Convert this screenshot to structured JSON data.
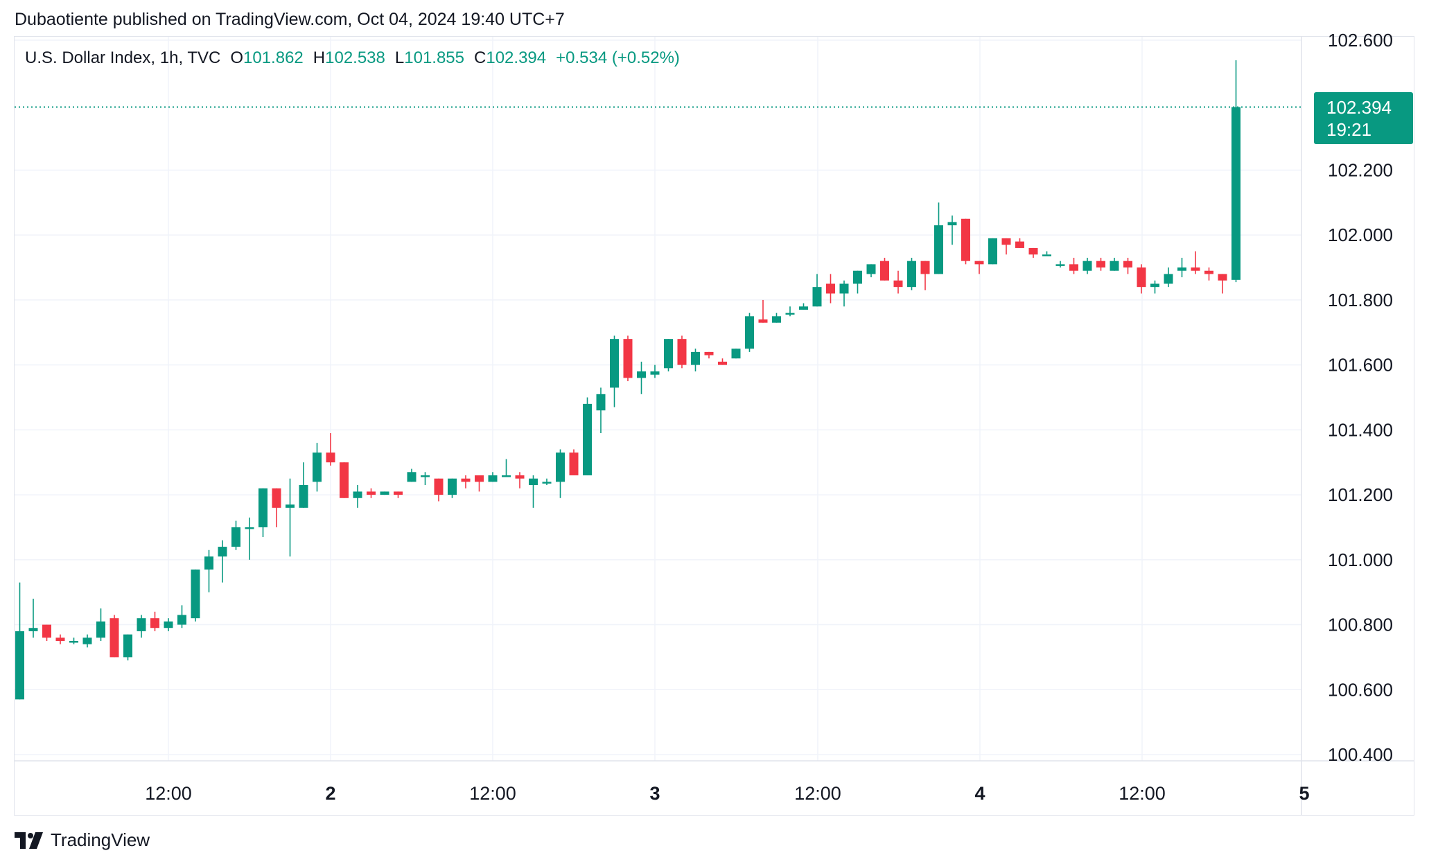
{
  "header": {
    "published_line": "Dubaotiente published on TradingView.com, Oct 04, 2024 19:40 UTC+7"
  },
  "legend": {
    "symbol": "U.S. Dollar Index, 1h, TVC",
    "open_label": "O",
    "open": "101.862",
    "high_label": "H",
    "high": "102.538",
    "low_label": "L",
    "low": "101.855",
    "close_label": "C",
    "close": "102.394",
    "change": "+0.534 (+0.52%)"
  },
  "price_tag": {
    "price": "102.394",
    "countdown": "19:21"
  },
  "footer": {
    "brand": "TradingView"
  },
  "colors": {
    "up": "#089981",
    "down": "#f23645",
    "grid": "#f0f3fa",
    "text": "#131722"
  },
  "chart_data": {
    "type": "candlestick",
    "y_axis_ticks": [
      "102.600",
      "102.200",
      "102.000",
      "101.800",
      "101.600",
      "101.400",
      "101.200",
      "101.000",
      "100.800",
      "100.600",
      "100.400"
    ],
    "x_axis_ticks": [
      {
        "label": "12:00",
        "bold": false
      },
      {
        "label": "2",
        "bold": true
      },
      {
        "label": "12:00",
        "bold": false
      },
      {
        "label": "3",
        "bold": true
      },
      {
        "label": "12:00",
        "bold": false
      },
      {
        "label": "4",
        "bold": true
      },
      {
        "label": "12:00",
        "bold": false
      },
      {
        "label": "5",
        "bold": true
      }
    ],
    "ylim": [
      100.35,
      102.64
    ],
    "last_price": 102.394,
    "grid": true,
    "candles": [
      [
        100.57,
        100.78,
        100.57,
        100.93
      ],
      [
        100.78,
        100.79,
        100.76,
        100.88
      ],
      [
        100.8,
        100.76,
        100.75,
        100.8
      ],
      [
        100.76,
        100.75,
        100.74,
        100.77
      ],
      [
        100.75,
        100.75,
        100.74,
        100.76
      ],
      [
        100.74,
        100.76,
        100.73,
        100.77
      ],
      [
        100.76,
        100.81,
        100.75,
        100.85
      ],
      [
        100.82,
        100.7,
        100.7,
        100.83
      ],
      [
        100.7,
        100.77,
        100.69,
        100.77
      ],
      [
        100.78,
        100.82,
        100.76,
        100.83
      ],
      [
        100.82,
        100.79,
        100.78,
        100.84
      ],
      [
        100.79,
        100.81,
        100.78,
        100.82
      ],
      [
        100.8,
        100.83,
        100.79,
        100.86
      ],
      [
        100.82,
        100.97,
        100.81,
        100.97
      ],
      [
        100.97,
        101.01,
        100.9,
        101.03
      ],
      [
        101.01,
        101.04,
        100.93,
        101.06
      ],
      [
        101.04,
        101.1,
        101.03,
        101.12
      ],
      [
        101.1,
        101.1,
        101.0,
        101.13
      ],
      [
        101.1,
        101.22,
        101.07,
        101.22
      ],
      [
        101.22,
        101.16,
        101.1,
        101.22
      ],
      [
        101.16,
        101.17,
        101.01,
        101.25
      ],
      [
        101.16,
        101.23,
        101.16,
        101.3
      ],
      [
        101.24,
        101.33,
        101.21,
        101.36
      ],
      [
        101.33,
        101.3,
        101.29,
        101.39
      ],
      [
        101.3,
        101.19,
        101.19,
        101.3
      ],
      [
        101.19,
        101.21,
        101.16,
        101.23
      ],
      [
        101.21,
        101.2,
        101.19,
        101.22
      ],
      [
        101.2,
        101.21,
        101.2,
        101.21
      ],
      [
        101.21,
        101.2,
        101.19,
        101.21
      ],
      [
        101.24,
        101.27,
        101.24,
        101.28
      ],
      [
        101.26,
        101.26,
        101.23,
        101.27
      ],
      [
        101.25,
        101.2,
        101.18,
        101.25
      ],
      [
        101.2,
        101.25,
        101.19,
        101.25
      ],
      [
        101.25,
        101.24,
        101.22,
        101.26
      ],
      [
        101.26,
        101.24,
        101.21,
        101.26
      ],
      [
        101.24,
        101.26,
        101.24,
        101.27
      ],
      [
        101.26,
        101.26,
        101.26,
        101.31
      ],
      [
        101.26,
        101.25,
        101.22,
        101.27
      ],
      [
        101.23,
        101.25,
        101.16,
        101.26
      ],
      [
        101.24,
        101.24,
        101.23,
        101.25
      ],
      [
        101.24,
        101.33,
        101.19,
        101.34
      ],
      [
        101.33,
        101.26,
        101.26,
        101.34
      ],
      [
        101.26,
        101.48,
        101.26,
        101.5
      ],
      [
        101.46,
        101.51,
        101.39,
        101.53
      ],
      [
        101.53,
        101.68,
        101.47,
        101.69
      ],
      [
        101.68,
        101.56,
        101.55,
        101.69
      ],
      [
        101.56,
        101.58,
        101.51,
        101.61
      ],
      [
        101.57,
        101.58,
        101.56,
        101.6
      ],
      [
        101.59,
        101.68,
        101.58,
        101.68
      ],
      [
        101.68,
        101.6,
        101.59,
        101.69
      ],
      [
        101.6,
        101.64,
        101.58,
        101.65
      ],
      [
        101.64,
        101.63,
        101.62,
        101.64
      ],
      [
        101.61,
        101.6,
        101.6,
        101.62
      ],
      [
        101.62,
        101.65,
        101.62,
        101.65
      ],
      [
        101.65,
        101.75,
        101.64,
        101.76
      ],
      [
        101.74,
        101.73,
        101.73,
        101.8
      ],
      [
        101.73,
        101.75,
        101.73,
        101.76
      ],
      [
        101.76,
        101.76,
        101.75,
        101.78
      ],
      [
        101.77,
        101.78,
        101.77,
        101.79
      ],
      [
        101.78,
        101.84,
        101.78,
        101.88
      ],
      [
        101.85,
        101.82,
        101.79,
        101.88
      ],
      [
        101.82,
        101.85,
        101.78,
        101.86
      ],
      [
        101.85,
        101.89,
        101.82,
        101.89
      ],
      [
        101.88,
        101.91,
        101.87,
        101.91
      ],
      [
        101.92,
        101.86,
        101.86,
        101.93
      ],
      [
        101.86,
        101.84,
        101.82,
        101.89
      ],
      [
        101.84,
        101.92,
        101.83,
        101.93
      ],
      [
        101.92,
        101.88,
        101.83,
        101.92
      ],
      [
        101.88,
        102.03,
        101.88,
        102.1
      ],
      [
        102.03,
        102.04,
        101.97,
        102.06
      ],
      [
        102.05,
        101.92,
        101.91,
        102.05
      ],
      [
        101.92,
        101.91,
        101.88,
        101.92
      ],
      [
        101.91,
        101.99,
        101.91,
        101.99
      ],
      [
        101.99,
        101.97,
        101.94,
        101.99
      ],
      [
        101.98,
        101.96,
        101.96,
        101.99
      ],
      [
        101.96,
        101.94,
        101.93,
        101.96
      ],
      [
        101.94,
        101.94,
        101.94,
        101.95
      ],
      [
        101.91,
        101.91,
        101.9,
        101.92
      ],
      [
        101.91,
        101.89,
        101.88,
        101.93
      ],
      [
        101.89,
        101.92,
        101.88,
        101.93
      ],
      [
        101.92,
        101.9,
        101.89,
        101.93
      ],
      [
        101.89,
        101.92,
        101.89,
        101.93
      ],
      [
        101.92,
        101.9,
        101.88,
        101.93
      ],
      [
        101.9,
        101.84,
        101.82,
        101.91
      ],
      [
        101.84,
        101.85,
        101.82,
        101.86
      ],
      [
        101.85,
        101.88,
        101.84,
        101.9
      ],
      [
        101.89,
        101.9,
        101.87,
        101.93
      ],
      [
        101.9,
        101.89,
        101.88,
        101.95
      ],
      [
        101.89,
        101.88,
        101.86,
        101.9
      ],
      [
        101.88,
        101.86,
        101.82,
        101.88
      ],
      [
        101.862,
        102.394,
        101.855,
        102.538
      ]
    ]
  }
}
